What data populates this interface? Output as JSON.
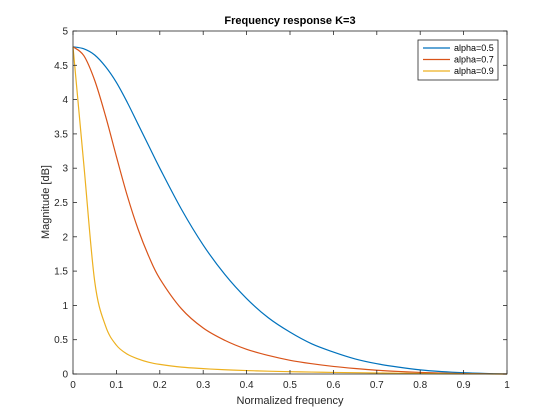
{
  "chart_data": {
    "type": "line",
    "title": "Frequency response K=3",
    "xlabel": "Normalized frequency",
    "ylabel": "Magnitude [dB]",
    "xlim": [
      0,
      1
    ],
    "ylim": [
      0,
      5
    ],
    "xticks": [
      "0",
      "0.1",
      "0.2",
      "0.3",
      "0.4",
      "0.5",
      "0.6",
      "0.7",
      "0.8",
      "0.9",
      "1"
    ],
    "yticks": [
      "0",
      "0.5",
      "1",
      "1.5",
      "2",
      "2.5",
      "3",
      "3.5",
      "4",
      "4.5",
      "5"
    ],
    "grid": false,
    "legend_position": "top-right",
    "x": [
      0,
      0.025,
      0.05,
      0.075,
      0.1,
      0.125,
      0.15,
      0.175,
      0.2,
      0.25,
      0.3,
      0.35,
      0.4,
      0.45,
      0.5,
      0.55,
      0.6,
      0.65,
      0.7,
      0.75,
      0.8,
      0.85,
      0.9,
      0.95,
      1.0
    ],
    "series": [
      {
        "name": "alpha=0.5",
        "color": "#0072BD",
        "values": [
          4.77,
          4.74,
          4.65,
          4.48,
          4.25,
          3.96,
          3.64,
          3.32,
          3.0,
          2.4,
          1.88,
          1.45,
          1.1,
          0.82,
          0.61,
          0.44,
          0.32,
          0.22,
          0.15,
          0.1,
          0.06,
          0.035,
          0.018,
          0.007,
          0.0
        ]
      },
      {
        "name": "alpha=0.7",
        "color": "#D95319",
        "values": [
          4.77,
          4.64,
          4.28,
          3.76,
          3.17,
          2.6,
          2.11,
          1.71,
          1.39,
          0.95,
          0.67,
          0.49,
          0.36,
          0.27,
          0.2,
          0.15,
          0.11,
          0.08,
          0.055,
          0.037,
          0.023,
          0.013,
          0.006,
          0.002,
          0.0
        ]
      },
      {
        "name": "alpha=0.9",
        "color": "#EDB120",
        "values": [
          4.77,
          3.05,
          1.35,
          0.7,
          0.42,
          0.29,
          0.22,
          0.17,
          0.14,
          0.1,
          0.078,
          0.062,
          0.05,
          0.041,
          0.034,
          0.028,
          0.023,
          0.019,
          0.015,
          0.011,
          0.008,
          0.005,
          0.003,
          0.001,
          0.0
        ]
      }
    ]
  }
}
